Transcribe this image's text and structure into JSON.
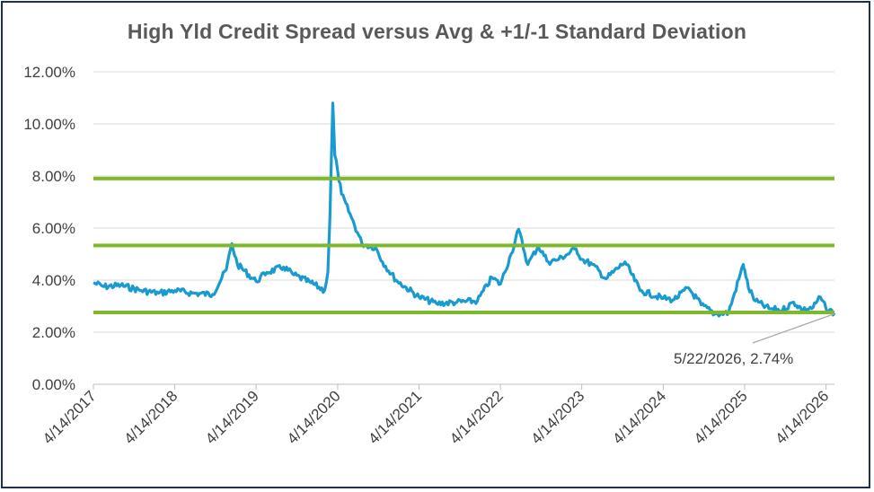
{
  "chart_data": {
    "type": "line",
    "title": "High Yld Credit Spread versus Avg & +1/-1 Standard Deviation",
    "xlabel": "",
    "ylabel": "",
    "ylim": [
      0,
      12
    ],
    "yticks": [
      "0.00%",
      "2.00%",
      "4.00%",
      "6.00%",
      "8.00%",
      "10.00%",
      "12.00%"
    ],
    "xlim": [
      "2017-04-14",
      "2026-05-22"
    ],
    "xticks": [
      "4/14/2017",
      "4/14/2018",
      "4/14/2019",
      "4/14/2020",
      "4/14/2021",
      "4/14/2022",
      "4/14/2023",
      "4/14/2024",
      "4/14/2025",
      "4/14/2026"
    ],
    "grid": "horizontal",
    "colors": {
      "series": "#1a9bd0",
      "bands": "#7db928",
      "grid": "#d9d9d9"
    },
    "bands": [
      7.9,
      5.33,
      2.76
    ],
    "annotation": {
      "text": "5/22/2026, 2.74%",
      "x": "2026-05-22",
      "y": 2.74
    },
    "series": [
      {
        "x": [
          "2017-04-14",
          "2017-06-01",
          "2017-08-15",
          "2017-11-15",
          "2018-02-01",
          "2018-04-14",
          "2018-07-01",
          "2018-10-01",
          "2018-12-01",
          "2018-12-26",
          "2019-01-20",
          "2019-04-14",
          "2019-06-01",
          "2019-08-15",
          "2019-10-01",
          "2019-12-15",
          "2020-02-15",
          "2020-03-01",
          "2020-03-10",
          "2020-03-23",
          "2020-04-01",
          "2020-04-14",
          "2020-05-01",
          "2020-06-15",
          "2020-08-01",
          "2020-10-01",
          "2020-11-01",
          "2021-01-01",
          "2021-04-14",
          "2021-07-01",
          "2021-10-01",
          "2022-01-01",
          "2022-03-07",
          "2022-04-14",
          "2022-06-01",
          "2022-07-05",
          "2022-08-15",
          "2022-10-01",
          "2022-11-15",
          "2023-01-01",
          "2023-03-20",
          "2023-04-14",
          "2023-06-01",
          "2023-08-01",
          "2023-10-25",
          "2024-01-01",
          "2024-04-14",
          "2024-06-01",
          "2024-08-05",
          "2024-10-01",
          "2024-12-01",
          "2025-02-01",
          "2025-04-08",
          "2025-04-14",
          "2025-05-01",
          "2025-06-01",
          "2025-08-01",
          "2025-10-01",
          "2025-11-20",
          "2026-01-01",
          "2026-02-15",
          "2026-03-20",
          "2026-04-14",
          "2026-05-22"
        ],
        "values": [
          3.9,
          3.75,
          3.8,
          3.6,
          3.5,
          3.6,
          3.5,
          3.45,
          4.4,
          5.4,
          4.6,
          3.95,
          4.3,
          4.5,
          4.2,
          3.9,
          3.6,
          4.3,
          6.4,
          10.8,
          8.8,
          8.2,
          7.3,
          6.4,
          5.4,
          5.25,
          4.7,
          4.0,
          3.35,
          3.1,
          3.15,
          3.2,
          4.1,
          3.85,
          5.0,
          5.95,
          4.6,
          5.3,
          4.7,
          4.8,
          5.2,
          4.8,
          4.6,
          4.05,
          4.7,
          3.6,
          3.3,
          3.25,
          3.7,
          3.05,
          2.7,
          2.75,
          4.6,
          4.4,
          3.7,
          3.2,
          2.9,
          2.85,
          3.15,
          2.85,
          2.95,
          3.35,
          2.9,
          2.74
        ]
      }
    ]
  }
}
